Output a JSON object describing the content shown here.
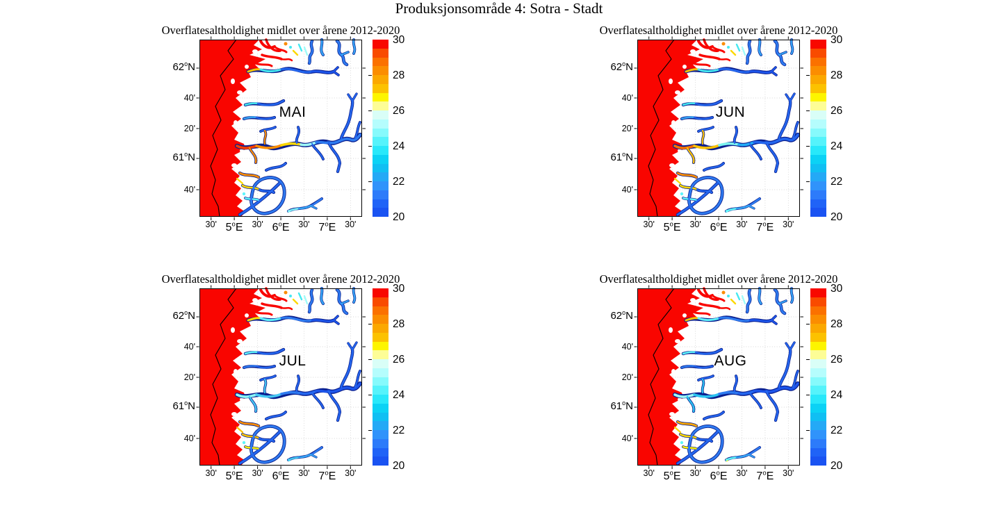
{
  "figure_title": "Produksjonsområde 4: Sotra - Stadt",
  "panels": [
    {
      "month": "MAI",
      "title": "Overflatesaltholdighet midlet over årene 2012-2020",
      "palette": {
        "s1": "#f83c00",
        "s2": "#fb8d00",
        "s3": "#fcd800",
        "s4": "#9ffbf7",
        "s5": "#2e7bf0",
        "n1": "#fcc200",
        "n2": "#46e8f0",
        "n3": "#2466ee",
        "n4": "#1d55ea",
        "m1": "#46e8f0",
        "m2": "#36a5f5",
        "c1": "#fb8d00",
        "c2": "#fcd800",
        "c3": "#5ef5fb",
        "b0": "#c0fdfb",
        "b1": "#7deff8"
      }
    },
    {
      "month": "JUN",
      "title": "Overflatesaltholdighet midlet over årene 2012-2020",
      "palette": {
        "s1": "#fb7100",
        "s2": "#fcc200",
        "s3": "#7df3ef",
        "s4": "#22adf8",
        "s5": "#2466ee",
        "n1": "#fcc200",
        "n2": "#46e8f0",
        "n3": "#2466ee",
        "n4": "#1d55ea",
        "m1": "#46e8f0",
        "m2": "#36a5f5",
        "c1": "#fb8d00",
        "c2": "#fcd800",
        "c3": "#5ef5fb",
        "b0": "#9ffbf9",
        "b1": "#5ef5fb"
      }
    },
    {
      "month": "JUL",
      "title": "Overflatesaltholdighet midlet over årene 2012-2020",
      "palette": {
        "s1": "#8efbf6",
        "s2": "#46c8f2",
        "s3": "#2e7bf0",
        "s4": "#2466ee",
        "s5": "#1d55ea",
        "n1": "#fdde00",
        "n2": "#5ef5fb",
        "n3": "#2e7bf0",
        "n4": "#1d55ea",
        "m1": "#5ef5fb",
        "m2": "#2e7bf0",
        "c1": "#fb8d00",
        "c2": "#fcc200",
        "c3": "#fdf200",
        "b0": "#5ef5fb",
        "b1": "#46c8f2"
      }
    },
    {
      "month": "AUG",
      "title": "Overflatesaltholdighet midlet over årene 2012-2020",
      "palette": {
        "s1": "#9ffbf7",
        "s2": "#2bc3f0",
        "s3": "#2e7bf0",
        "s4": "#2466ee",
        "s5": "#1d55ea",
        "n1": "#fcc200",
        "n2": "#5ef5fb",
        "n3": "#2e7bf0",
        "n4": "#1d55ea",
        "m1": "#5ef5fb",
        "m2": "#2e7bf0",
        "c1": "#fba800",
        "c2": "#fcd800",
        "c3": "#fdf200",
        "b0": "#fdf200",
        "b1": "#5ef5fb"
      }
    }
  ],
  "axes": {
    "x_tick_labels": [
      "30'",
      "5°E",
      "30'",
      "6°E",
      "30'",
      "7°E",
      "30'"
    ],
    "y_tick_labels": [
      "62°N",
      "40'",
      "20'",
      "61°N",
      "40'"
    ]
  },
  "colorbar": {
    "min": 20,
    "max": 30,
    "tick_labels": [
      "30",
      "28",
      "26",
      "24",
      "22",
      "20"
    ],
    "band_colors_bottom_to_top": [
      "#1a53f2",
      "#2063f7",
      "#2d7bfa",
      "#3093fb",
      "#24a9f6",
      "#10bff3",
      "#0bd2f5",
      "#28e8fa",
      "#55f3fb",
      "#86fafc",
      "#b5fdfd",
      "#d9fef7",
      "#fdfd96",
      "#fdf500",
      "#fcc200",
      "#fba800",
      "#fb8d00",
      "#fb7100",
      "#f94b00",
      "#f80800"
    ]
  },
  "map_colors": {
    "open_ocean_red": "#f90500",
    "fjord_outline_navy": "#0a1f8f",
    "deep_fjord_blue": "#2466ee"
  },
  "chart_data": {
    "type": "heatmap",
    "title": "Produksjonsområde 4: Sotra - Stadt",
    "panel_title": "Overflatesaltholdighet midlet over årene 2012-2020",
    "panels": [
      "MAI",
      "JUN",
      "JUL",
      "AUG"
    ],
    "colorbar_ticks": [
      20,
      22,
      24,
      26,
      28,
      30
    ],
    "colorbar_range": [
      20,
      30
    ],
    "x_ticks": [
      "30'",
      "5°E",
      "30'",
      "6°E",
      "30'",
      "7°E",
      "30'"
    ],
    "y_ticks": [
      "62°N",
      "40'",
      "20'",
      "61°N",
      "40'"
    ],
    "legend_position": "right-of-each-panel",
    "grid": "dotted"
  }
}
